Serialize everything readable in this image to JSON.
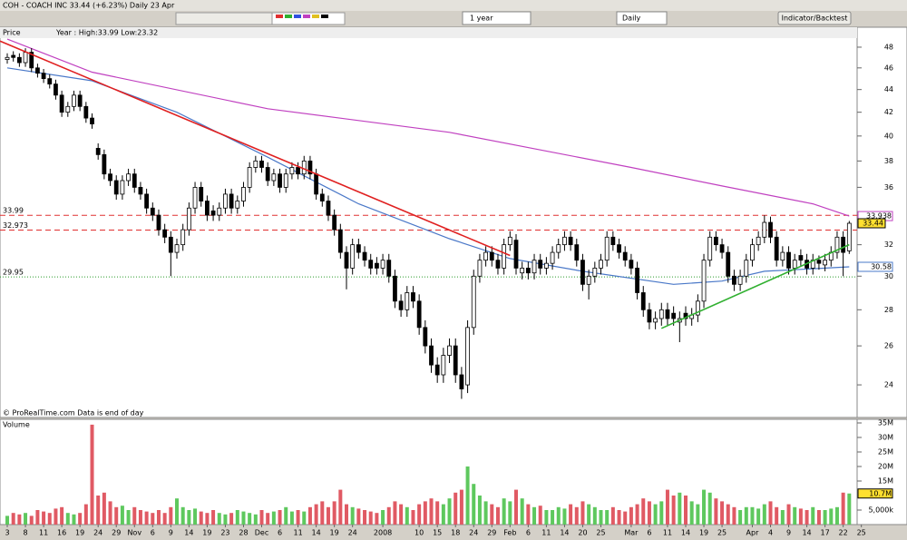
{
  "toolbar": {
    "title": "COH - COACH INC  33.44 (+6.23%)  Daily  23 Apr",
    "period": "1 year",
    "interval": "Daily",
    "button": "Indicator/Backtest"
  },
  "chart_data": [
    {
      "type": "candlestick",
      "panel_title": "Price",
      "subtitle": "Year : High:33.99 Low:23.32",
      "note": "© ProRealTime.com   Data is end of day",
      "log": true,
      "ylim": [
        22.53,
        48.9
      ],
      "xlim": [
        -1.2,
        140.3
      ],
      "yticks": [
        24,
        26,
        28,
        30,
        32,
        34,
        36,
        38,
        40,
        42,
        44,
        46,
        48
      ],
      "up_color": "#ffffff",
      "down_color": "#000000",
      "open": [
        46.8,
        47.2,
        47,
        46.5,
        47.5,
        46,
        45.5,
        45,
        44.5,
        43.5,
        42,
        42.5,
        43.5,
        42.5,
        41.5,
        39,
        38.5,
        37,
        36.5,
        35.5,
        36.5,
        37,
        36,
        35.5,
        34.5,
        34,
        33,
        32.5,
        31.5,
        32,
        33,
        34.5,
        36,
        35,
        34.3,
        34,
        34.5,
        35.5,
        34.5,
        35,
        36,
        37.5,
        38,
        37.5,
        36.5,
        37,
        36,
        37,
        37.5,
        37,
        38,
        37,
        35.5,
        35,
        34,
        33,
        31.5,
        30.5,
        32,
        31.5,
        31,
        30.8,
        30.5,
        31,
        30,
        28.5,
        28,
        29,
        28.5,
        27,
        26,
        25,
        24.5,
        25.5,
        26,
        24.5,
        24,
        27,
        30,
        31,
        31.5,
        31,
        30.5,
        32,
        32.3,
        30.2,
        30.5,
        30.2,
        31,
        30.5,
        30.8,
        31.5,
        32,
        32.5,
        32,
        31,
        29.5,
        30,
        30.5,
        31,
        32.5,
        32,
        31.5,
        31,
        30.5,
        29,
        28,
        27.3,
        27.5,
        28,
        27.8,
        27.3,
        27.8,
        27.5,
        27.7,
        28.5,
        31,
        32.5,
        32,
        31.5,
        30,
        29.5,
        30,
        31,
        32,
        32.5,
        33.5,
        32.5,
        31,
        31.5,
        30.5,
        31.3,
        31,
        30.5,
        31,
        30.7,
        31,
        31.5,
        32.5,
        31.6
      ],
      "high": [
        47.4,
        47.6,
        47.4,
        47.9,
        47.9,
        46.4,
        45.9,
        45.4,
        44.9,
        43.9,
        42.9,
        43.9,
        43.9,
        42.9,
        41.9,
        39.4,
        38.9,
        37.4,
        36.9,
        36.9,
        37.4,
        37.4,
        36.4,
        35.9,
        34.9,
        34.4,
        33.4,
        32.9,
        32.4,
        33.4,
        34.9,
        36.4,
        36.4,
        35.4,
        34.7,
        34.9,
        35.9,
        35.9,
        35.4,
        36.4,
        37.9,
        38.4,
        38.4,
        37.9,
        37.4,
        37.4,
        37.4,
        37.9,
        37.9,
        38.4,
        38.4,
        37.4,
        35.9,
        35.4,
        34.4,
        33.4,
        31.9,
        32.4,
        32.4,
        31.9,
        31.4,
        31.2,
        31.4,
        31.4,
        30.4,
        28.9,
        29.4,
        29.4,
        28.9,
        27.4,
        26.4,
        25.4,
        25.9,
        26.4,
        26.4,
        24.9,
        27.4,
        30.4,
        31.4,
        31.9,
        31.9,
        31.4,
        32.4,
        32.9,
        32.7,
        30.9,
        30.9,
        31.4,
        31.4,
        31.2,
        31.9,
        32.4,
        32.9,
        32.9,
        32.4,
        31.4,
        30.4,
        30.9,
        31.4,
        32.9,
        32.9,
        32.4,
        31.9,
        31.4,
        30.9,
        29.4,
        28.4,
        27.9,
        28.4,
        28.4,
        28.2,
        27.9,
        28.2,
        28.1,
        28.9,
        31.4,
        32.9,
        32.9,
        32.4,
        31.9,
        30.4,
        30.4,
        31.4,
        32.4,
        32.9,
        33.99,
        33.9,
        32.9,
        31.9,
        31.9,
        31.4,
        31.7,
        31.4,
        31.4,
        31.3,
        31.4,
        31.9,
        32.9,
        32.9,
        33.6
      ],
      "low": [
        46.4,
        46.6,
        46.1,
        46.1,
        45.6,
        45.1,
        44.6,
        44.1,
        43.1,
        41.6,
        41.6,
        42.1,
        42.1,
        41.1,
        40.6,
        38.1,
        36.6,
        36.1,
        35.1,
        35.1,
        36.1,
        35.6,
        35.1,
        34.1,
        33.6,
        32.6,
        32.1,
        30,
        31.1,
        31.6,
        32.6,
        34.1,
        34.6,
        33.6,
        33.6,
        33.6,
        34.1,
        34.1,
        34.1,
        34.6,
        35.6,
        37.1,
        37.1,
        36.1,
        36.1,
        35.6,
        35.6,
        36.6,
        36.6,
        36.6,
        36.6,
        35.1,
        34.6,
        33.6,
        32.6,
        31.1,
        29.2,
        30.1,
        31.1,
        30.6,
        30.1,
        30.1,
        30.1,
        29.6,
        28.1,
        27.6,
        27.6,
        28.1,
        26.6,
        25.6,
        24.6,
        24.1,
        24.1,
        25.1,
        24.1,
        23.32,
        23.6,
        26.6,
        29.6,
        30.6,
        30.6,
        30.1,
        30.1,
        31.6,
        30.1,
        29.8,
        29.8,
        29.8,
        30.1,
        30.1,
        30.4,
        31.1,
        31.6,
        31.6,
        30.6,
        29.1,
        28.6,
        29.6,
        30.1,
        30.6,
        31.6,
        31.1,
        30.6,
        30.1,
        28.6,
        27.6,
        26.9,
        26.9,
        27.1,
        27.1,
        27.1,
        26.2,
        27.1,
        27.1,
        27.3,
        28.1,
        30.6,
        31.6,
        31.1,
        29.6,
        29.1,
        29.1,
        29.6,
        30.6,
        31.6,
        32.1,
        32.1,
        30.6,
        30.6,
        30.1,
        30.1,
        30.6,
        30.1,
        30.1,
        30.4,
        30.3,
        30.6,
        31.1,
        30,
        31.4
      ],
      "close": [
        47,
        47,
        46.5,
        47.5,
        46,
        45.5,
        45,
        44.5,
        43.5,
        42,
        42.5,
        43.5,
        42.5,
        41.5,
        41,
        38.5,
        37,
        36.5,
        35.5,
        36.5,
        37,
        36,
        35.5,
        34.5,
        34,
        33,
        32.5,
        31.5,
        32,
        33,
        34.5,
        36,
        35,
        34,
        34,
        34.5,
        35.5,
        34.5,
        35,
        36,
        37.5,
        38,
        37.5,
        36.5,
        37,
        36,
        37,
        37.5,
        37,
        38,
        37,
        35.5,
        35,
        34,
        33,
        31.5,
        30.5,
        32,
        31.5,
        31,
        30.5,
        30.5,
        31,
        30,
        28.5,
        28,
        29,
        28.5,
        27,
        26,
        25,
        24.5,
        25.5,
        26,
        24.5,
        23.8,
        27,
        30,
        31,
        31.5,
        31,
        30.5,
        32,
        32.5,
        30.5,
        30.5,
        30.2,
        31,
        30.5,
        30.8,
        31.5,
        32,
        32.5,
        32,
        31,
        29.5,
        30,
        30.5,
        31,
        32.5,
        32,
        31.5,
        31,
        30.5,
        29,
        28,
        27.3,
        27.5,
        28,
        27.5,
        27.5,
        27.5,
        27.5,
        27.7,
        28.5,
        31,
        32.5,
        32,
        31.5,
        30,
        29.5,
        30,
        31,
        32,
        32.5,
        33.5,
        32.5,
        31,
        31.5,
        30.5,
        31,
        31,
        30.5,
        31,
        30.8,
        31,
        31.5,
        32.5,
        31.5,
        33.44
      ],
      "moving_averages": [
        {
          "color": "#c040c0",
          "x": [
            0,
            14,
            43,
            73,
            103,
            118,
            133,
            139
          ],
          "values": [
            48.8,
            45.6,
            42.3,
            40.3,
            37.5,
            36.1,
            34.8,
            33.938
          ]
        },
        {
          "color": "#4a78c8",
          "x": [
            0,
            14,
            28,
            43,
            58,
            73,
            83,
            95,
            110,
            118,
            125,
            139
          ],
          "values": [
            46,
            44.8,
            42,
            38.3,
            34.8,
            32.4,
            31.1,
            30.3,
            29.5,
            29.7,
            30.3,
            30.58
          ]
        }
      ],
      "trendlines": [
        {
          "color": "#e02020",
          "x": [
            -1.2,
            83
          ],
          "values": [
            48.6,
            31.3
          ]
        },
        {
          "color": "#30b030",
          "x": [
            108,
            139
          ],
          "values": [
            26.95,
            32
          ]
        }
      ],
      "levels": [
        33.99,
        32.973,
        29.95
      ],
      "level_colors": [
        "#e03030",
        "#e03030",
        "#2a9a2a"
      ],
      "level_styles": [
        "dashed",
        "dashed",
        "dotted"
      ]
    },
    {
      "type": "bar",
      "panel_title": "Volume",
      "ylim": [
        0,
        36250000
      ],
      "xlim": [
        -1.2,
        140.3
      ],
      "up_color": "#5ec85e",
      "down_color": "#e05a64",
      "yticks": [
        {
          "value": 35000000,
          "label": "35M"
        },
        {
          "value": 30000000,
          "label": "30M"
        },
        {
          "value": 25000000,
          "label": "25M"
        },
        {
          "value": 20000000,
          "label": "20M"
        },
        {
          "value": 15000000,
          "label": "15M"
        },
        {
          "value": 5000000,
          "label": "5,000k"
        }
      ],
      "values": [
        3000000,
        4000000,
        3500000,
        4000000,
        3000000,
        5000000,
        4500000,
        4000000,
        5500000,
        6000000,
        4000000,
        3500000,
        4000000,
        7000000,
        34400000,
        10000000,
        11000000,
        8000000,
        6000000,
        6500000,
        5000000,
        6000000,
        5000000,
        4500000,
        4000000,
        5000000,
        4000000,
        6000000,
        9000000,
        6000000,
        5000000,
        5500000,
        4500000,
        4000000,
        5000000,
        4000000,
        3500000,
        4000000,
        5000000,
        4500000,
        4000000,
        3500000,
        5000000,
        4000000,
        4500000,
        5000000,
        6000000,
        4500000,
        5000000,
        4500000,
        6000000,
        7000000,
        8000000,
        6000000,
        8000000,
        12000000,
        7000000,
        6000000,
        5500000,
        5000000,
        4500000,
        4000000,
        5000000,
        6000000,
        8000000,
        7000000,
        6000000,
        5000000,
        7000000,
        8000000,
        9000000,
        8000000,
        7000000,
        9000000,
        11000000,
        12000000,
        20000000,
        14000000,
        10000000,
        8000000,
        7000000,
        6000000,
        9000000,
        8000000,
        12000000,
        9000000,
        7000000,
        6000000,
        6500000,
        5000000,
        5000000,
        6000000,
        5500000,
        7000000,
        6000000,
        8000000,
        7000000,
        6000000,
        5000000,
        5000000,
        6000000,
        5000000,
        4500000,
        6000000,
        7000000,
        9000000,
        8000000,
        7000000,
        8000000,
        12000000,
        10000000,
        11000000,
        10000000,
        8000000,
        7000000,
        12000000,
        11000000,
        9000000,
        8000000,
        7000000,
        6000000,
        5000000,
        6000000,
        6000000,
        5500000,
        7000000,
        8000000,
        6000000,
        5000000,
        7000000,
        6000000,
        5500000,
        5000000,
        6000000,
        5000000,
        5000000,
        5500000,
        6000000,
        11000000,
        10700000
      ],
      "value_labels": [
        null,
        null,
        null,
        null,
        null,
        null,
        null,
        null,
        null,
        null,
        null,
        null,
        null,
        null,
        null,
        null,
        null,
        null,
        null,
        null,
        null,
        null,
        null,
        null,
        null,
        null,
        null,
        null,
        null,
        null,
        null,
        null,
        null,
        null,
        null,
        null,
        null,
        null,
        null,
        null,
        null,
        null,
        null,
        null,
        null,
        null,
        null,
        null,
        null,
        null,
        null,
        null,
        null,
        null,
        null,
        null,
        null,
        null,
        null,
        null,
        null,
        null,
        null,
        null,
        null,
        null,
        null,
        null,
        null,
        null,
        null,
        null,
        null,
        null,
        null,
        null,
        null,
        null,
        null,
        null,
        null,
        null,
        null,
        null,
        null,
        null,
        null,
        null,
        null,
        null,
        null,
        null,
        null,
        null,
        null,
        null,
        null,
        null,
        null,
        null,
        null,
        null,
        null,
        null,
        null,
        null,
        null,
        null,
        null,
        null,
        null,
        null,
        null,
        null,
        null,
        null,
        null,
        null,
        null,
        null,
        null,
        null,
        null,
        null,
        null,
        null,
        null,
        null,
        null,
        null,
        null,
        null,
        null,
        null,
        null,
        null,
        null,
        null,
        null,
        "10.7M"
      ],
      "xticks": [
        {
          "value": 0,
          "label": "3"
        },
        {
          "value": 3,
          "label": "8"
        },
        {
          "value": 6,
          "label": "11"
        },
        {
          "value": 9,
          "label": "16"
        },
        {
          "value": 12,
          "label": "19"
        },
        {
          "value": 15,
          "label": "24"
        },
        {
          "value": 18,
          "label": "29"
        },
        {
          "value": 21,
          "label": "Nov"
        },
        {
          "value": 24,
          "label": "6"
        },
        {
          "value": 27,
          "label": "9"
        },
        {
          "value": 30,
          "label": "14"
        },
        {
          "value": 33,
          "label": "19"
        },
        {
          "value": 36,
          "label": "23"
        },
        {
          "value": 39,
          "label": "28"
        },
        {
          "value": 42,
          "label": "Dec"
        },
        {
          "value": 45,
          "label": "6"
        },
        {
          "value": 48,
          "label": "11"
        },
        {
          "value": 51,
          "label": "14"
        },
        {
          "value": 54,
          "label": "19"
        },
        {
          "value": 57,
          "label": "24"
        },
        {
          "value": 62,
          "label": "2008"
        },
        {
          "value": 68,
          "label": "10"
        },
        {
          "value": 71,
          "label": "15"
        },
        {
          "value": 74,
          "label": "18"
        },
        {
          "value": 77,
          "label": "24"
        },
        {
          "value": 80,
          "label": "29"
        },
        {
          "value": 83,
          "label": "Feb"
        },
        {
          "value": 86,
          "label": "6"
        },
        {
          "value": 89,
          "label": "11"
        },
        {
          "value": 92,
          "label": "14"
        },
        {
          "value": 95,
          "label": "20"
        },
        {
          "value": 98,
          "label": "25"
        },
        {
          "value": 103,
          "label": "Mar"
        },
        {
          "value": 106,
          "label": "6"
        },
        {
          "value": 109,
          "label": "11"
        },
        {
          "value": 112,
          "label": "14"
        },
        {
          "value": 115,
          "label": "19"
        },
        {
          "value": 118,
          "label": "25"
        },
        {
          "value": 123,
          "label": "Apr"
        },
        {
          "value": 126,
          "label": "4"
        },
        {
          "value": 129,
          "label": "9"
        },
        {
          "value": 132,
          "label": "14"
        },
        {
          "value": 135,
          "label": "17"
        },
        {
          "value": 138,
          "label": "22"
        },
        {
          "value": 141,
          "label": "25"
        }
      ]
    }
  ]
}
